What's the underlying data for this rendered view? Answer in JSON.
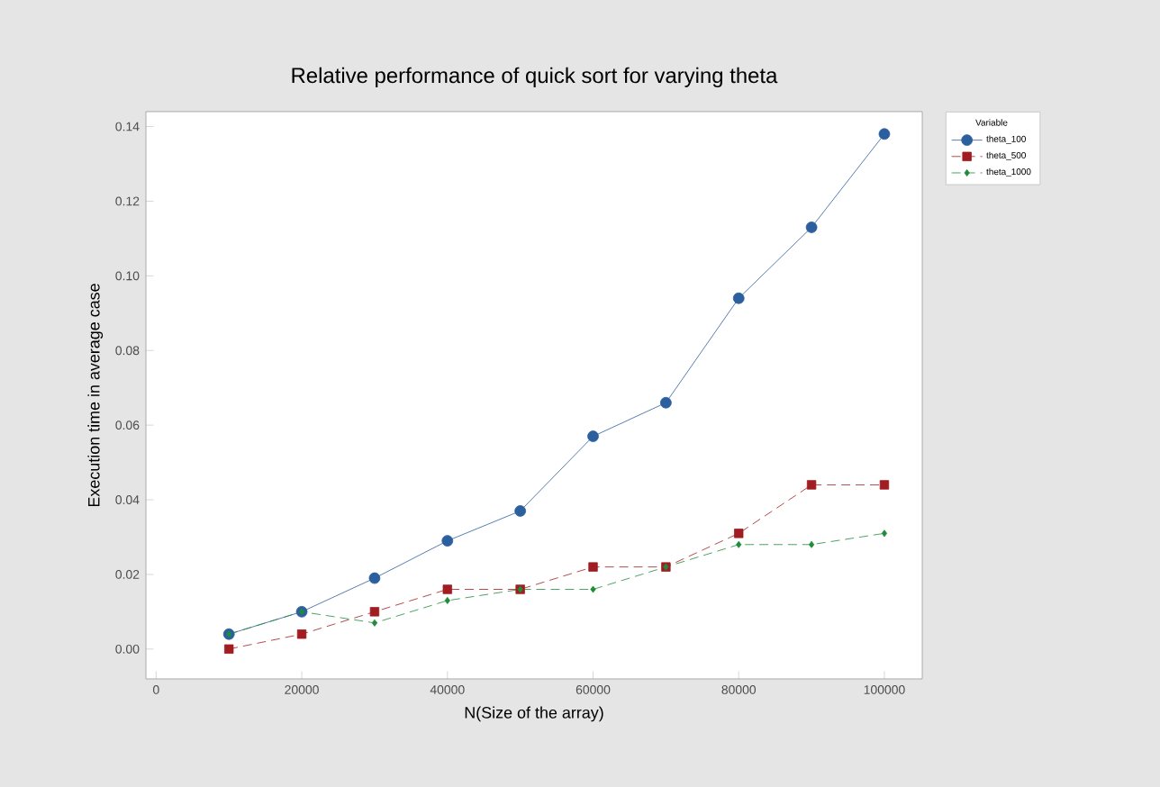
{
  "chart_data": {
    "type": "line",
    "title": "Relative performance of quick sort for varying theta",
    "xlabel": "N(Size of the array)",
    "ylabel": "Execution time in average case",
    "legend_title": "Variable",
    "legend": "right",
    "grid": false,
    "x": [
      10000,
      20000,
      30000,
      40000,
      50000,
      60000,
      70000,
      80000,
      90000,
      100000
    ],
    "xlim": [
      -1400,
      105200
    ],
    "xticks": [
      0,
      20000,
      40000,
      60000,
      80000,
      100000
    ],
    "ylim": [
      -0.008,
      0.144
    ],
    "yticks": [
      {
        "value": 0,
        "label": "0.00"
      },
      {
        "value": 0.02,
        "label": "0.02"
      },
      {
        "value": 0.04,
        "label": "0.04"
      },
      {
        "value": 0.06,
        "label": "0.06"
      },
      {
        "value": 0.08,
        "label": "0.08"
      },
      {
        "value": 0.1,
        "label": "0.10"
      },
      {
        "value": 0.12,
        "label": "0.12"
      },
      {
        "value": 0.14,
        "label": "0.14"
      }
    ],
    "series": [
      {
        "name": "theta_100",
        "color": "#2c5f9e",
        "marker": "circle",
        "line_style": "solid",
        "values": [
          0.004,
          0.01,
          0.019,
          0.029,
          0.037,
          0.057,
          0.066,
          0.094,
          0.113,
          0.138
        ]
      },
      {
        "name": "theta_500",
        "color": "#a11d21",
        "marker": "square",
        "line_style": "dashed",
        "values": [
          0.0,
          0.004,
          0.01,
          0.016,
          0.016,
          0.022,
          0.022,
          0.031,
          0.044,
          0.044
        ]
      },
      {
        "name": "theta_1000",
        "color": "#1e8c3a",
        "marker": "diamond",
        "line_style": "dashed",
        "values": [
          0.004,
          0.01,
          0.007,
          0.013,
          0.016,
          0.016,
          0.022,
          0.028,
          0.028,
          0.031
        ]
      }
    ]
  }
}
